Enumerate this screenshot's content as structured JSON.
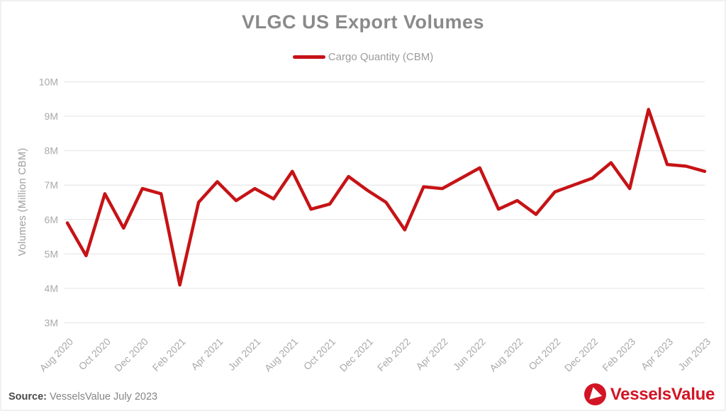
{
  "title": "VLGC US Export Volumes",
  "legend": {
    "label": "Cargo Quantity (CBM)",
    "color": "#c61316"
  },
  "y_axis": {
    "title": "Volumes (Million CBM)",
    "ticks": [
      "10M",
      "9M",
      "8M",
      "7M",
      "6M",
      "5M",
      "4M",
      "3M"
    ]
  },
  "x_axis": {
    "labels": [
      "Aug 2020",
      "Oct 2020",
      "Dec 2020",
      "Feb 2021",
      "Apr 2021",
      "Jun 2021",
      "Aug 2021",
      "Oct 2021",
      "Dec 2021",
      "Feb 2022",
      "Apr 2022",
      "Jun 2022",
      "Aug 2022",
      "Oct 2022",
      "Dec 2022",
      "Feb 2023",
      "Apr 2023",
      "Jun 2023"
    ]
  },
  "footer": {
    "source_label": "Source:",
    "source_text": "VesselsValue July 2023",
    "logo_text": "VesselsValue"
  },
  "colors": {
    "line": "#c61316",
    "logo": "#d31424",
    "grid": "#e7e7e7",
    "title_text": "#8a8a8a",
    "axis_text": "#a9a9a9"
  },
  "chart_data": {
    "type": "line",
    "title": "VLGC US Export Volumes",
    "xlabel": "",
    "ylabel": "Volumes (Million CBM)",
    "ylim": [
      3,
      10
    ],
    "grid": true,
    "legend_position": "top",
    "x": [
      "Aug 2020",
      "Sep 2020",
      "Oct 2020",
      "Nov 2020",
      "Dec 2020",
      "Jan 2021",
      "Feb 2021",
      "Mar 2021",
      "Apr 2021",
      "May 2021",
      "Jun 2021",
      "Jul 2021",
      "Aug 2021",
      "Sep 2021",
      "Oct 2021",
      "Nov 2021",
      "Dec 2021",
      "Jan 2022",
      "Feb 2022",
      "Mar 2022",
      "Apr 2022",
      "May 2022",
      "Jun 2022",
      "Jul 2022",
      "Aug 2022",
      "Sep 2022",
      "Oct 2022",
      "Nov 2022",
      "Dec 2022",
      "Jan 2023",
      "Feb 2023",
      "Mar 2023",
      "Apr 2023",
      "May 2023",
      "Jun 2023"
    ],
    "series": [
      {
        "name": "Cargo Quantity (CBM)",
        "color": "#c61316",
        "units": "Million CBM",
        "values": [
          5.9,
          4.95,
          6.75,
          5.75,
          6.9,
          6.75,
          4.1,
          6.5,
          7.1,
          6.55,
          6.9,
          6.6,
          7.4,
          6.3,
          6.45,
          7.25,
          6.85,
          6.5,
          5.7,
          6.95,
          6.9,
          7.2,
          7.5,
          6.3,
          6.55,
          6.15,
          6.8,
          7.0,
          7.2,
          7.65,
          6.9,
          9.2,
          7.6,
          7.55,
          7.4
        ]
      }
    ]
  }
}
